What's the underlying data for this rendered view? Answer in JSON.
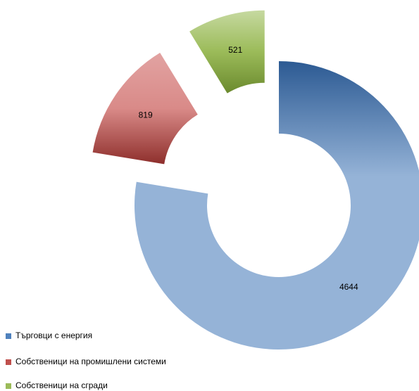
{
  "chart_data": {
    "type": "donut",
    "categories": [
      "Търговци с енергия",
      "Собственици на промишлени системи",
      "Собственици на сгради"
    ],
    "values": [
      4644,
      819,
      521
    ],
    "colors": [
      "#4f81bd",
      "#c0504d",
      "#9bbb59"
    ],
    "exploded": [
      false,
      true,
      true
    ],
    "legend": "bottom-left"
  }
}
